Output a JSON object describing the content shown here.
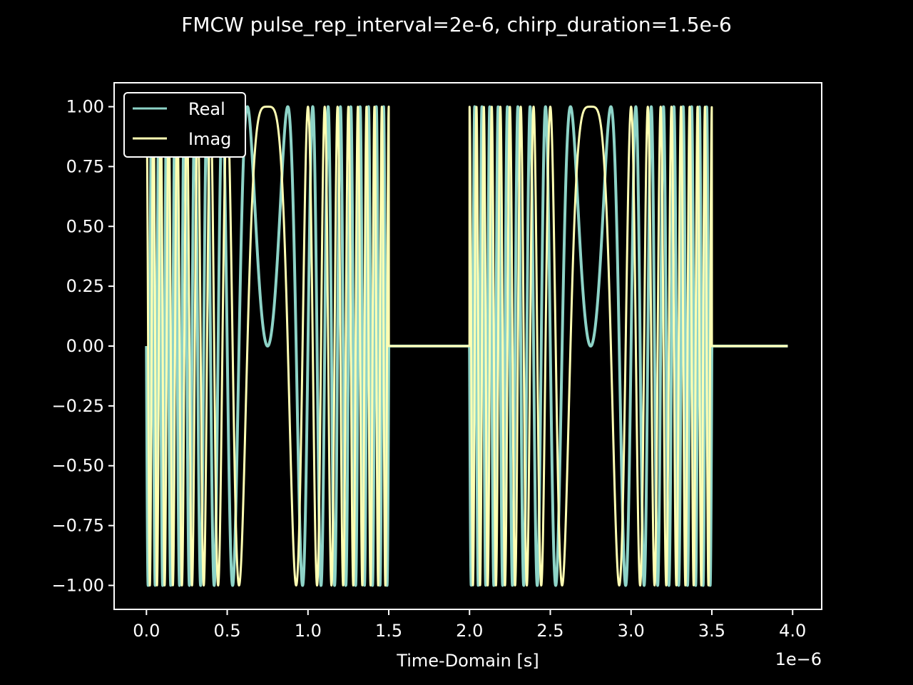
{
  "chart_data": {
    "type": "line",
    "title": "FMCW pulse_rep_interval=2e-6, chirp_duration=1.5e-6",
    "xlabel": "Time-Domain [s]",
    "ylabel": "",
    "x_offset_label": "1e−6",
    "xlim": [
      -2e-07,
      4.18e-06
    ],
    "ylim": [
      -1.1,
      1.1
    ],
    "x_ticks": [
      0,
      5e-07,
      1e-06,
      1.5e-06,
      2e-06,
      2.5e-06,
      3e-06,
      3.5e-06,
      4e-06
    ],
    "x_tick_labels": [
      "0.0",
      "0.5",
      "1.0",
      "1.5",
      "2.0",
      "2.5",
      "3.0",
      "3.5",
      "4.0"
    ],
    "y_ticks": [
      1.0,
      0.75,
      0.5,
      0.25,
      0.0,
      -0.25,
      -0.5,
      -0.75,
      -1.0
    ],
    "y_tick_labels": [
      "1.00",
      "0.75",
      "0.50",
      "0.25",
      "0.00",
      "−0.25",
      "−0.50",
      "−0.75",
      "−1.00"
    ],
    "grid": false,
    "legend_position": "upper-left",
    "signal": {
      "pulse_rep_interval": 2e-06,
      "chirp_duration": 1.5e-06,
      "num_pulses": 2,
      "t_start": 0,
      "t_end": 3.97e-06,
      "phase_curvature": 32000000000000.0,
      "phase_center": 7.5e-07
    },
    "series": [
      {
        "name": "Real",
        "color": "#8dd3c7",
        "component": "real",
        "stroke_width": 4
      },
      {
        "name": "Imag",
        "color": "#ffffb3",
        "component": "imag",
        "stroke_width": 3
      }
    ]
  },
  "colors": {
    "background": "#000000",
    "axes": "#ffffff",
    "text": "#ffffff"
  }
}
